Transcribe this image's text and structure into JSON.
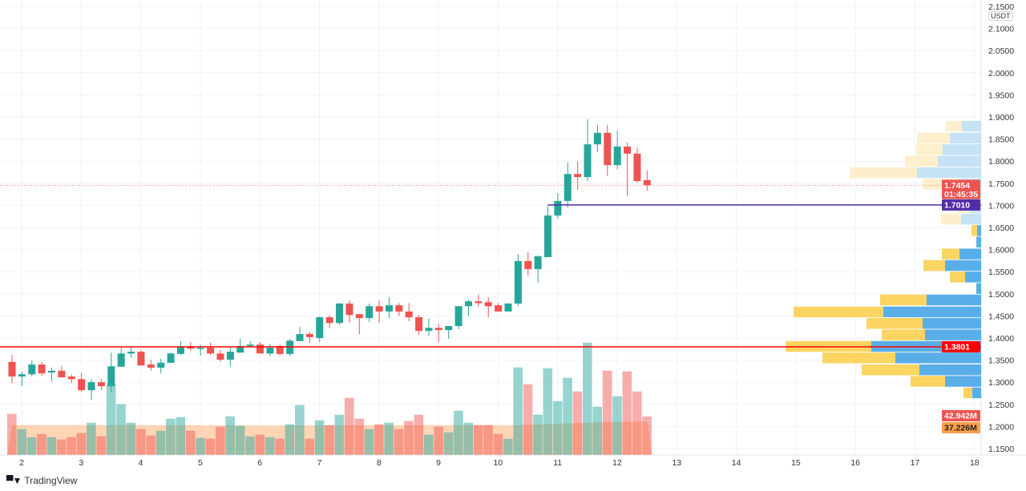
{
  "chart_data": {
    "type": "candlestick",
    "currency": "USDT",
    "y_ticks": [
      "2.1500",
      "2.1000",
      "2.0500",
      "2.0000",
      "1.9500",
      "1.9000",
      "1.8500",
      "1.8000",
      "1.7500",
      "1.7000",
      "1.6500",
      "1.6000",
      "1.5500",
      "1.5000",
      "1.4500",
      "1.4000",
      "1.3500",
      "1.3000",
      "1.2500",
      "1.2000",
      "1.1500"
    ],
    "ylim": [
      1.15,
      2.15
    ],
    "x_ticks": [
      "2",
      "3",
      "4",
      "5",
      "6",
      "7",
      "8",
      "9",
      "10",
      "11",
      "12",
      "13",
      "14",
      "15",
      "16",
      "17",
      "18"
    ],
    "grid": true,
    "colors": {
      "up": "#26a69a",
      "down": "#ef5350",
      "volume_ma": "#ff9800",
      "profile_up": "#5aaee8",
      "profile_down": "#fcd462",
      "support": "#ff0000",
      "level": "#512da8"
    },
    "ohlc": [
      [
        1.346,
        1.362,
        1.297,
        1.313
      ],
      [
        1.313,
        1.324,
        1.291,
        1.318
      ],
      [
        1.318,
        1.349,
        1.313,
        1.34
      ],
      [
        1.34,
        1.346,
        1.315,
        1.32
      ],
      [
        1.322,
        1.333,
        1.302,
        1.326
      ],
      [
        1.326,
        1.336,
        1.311,
        1.311
      ],
      [
        1.313,
        1.318,
        1.298,
        1.307
      ],
      [
        1.307,
        1.322,
        1.278,
        1.282
      ],
      [
        1.282,
        1.306,
        1.26,
        1.3
      ],
      [
        1.3,
        1.307,
        1.282,
        1.291
      ],
      [
        1.291,
        1.367,
        1.278,
        1.336
      ],
      [
        1.335,
        1.378,
        1.335,
        1.365
      ],
      [
        1.365,
        1.382,
        1.356,
        1.369
      ],
      [
        1.369,
        1.373,
        1.338,
        1.338
      ],
      [
        1.34,
        1.351,
        1.326,
        1.333
      ],
      [
        1.333,
        1.353,
        1.32,
        1.344
      ],
      [
        1.344,
        1.367,
        1.344,
        1.365
      ],
      [
        1.364,
        1.393,
        1.362,
        1.38
      ],
      [
        1.38,
        1.391,
        1.371,
        1.376
      ],
      [
        1.376,
        1.385,
        1.36,
        1.378
      ],
      [
        1.378,
        1.389,
        1.362,
        1.365
      ],
      [
        1.365,
        1.373,
        1.346,
        1.351
      ],
      [
        1.351,
        1.38,
        1.336,
        1.369
      ],
      [
        1.367,
        1.398,
        1.367,
        1.382
      ],
      [
        1.382,
        1.393,
        1.38,
        1.385
      ],
      [
        1.385,
        1.391,
        1.365,
        1.365
      ],
      [
        1.365,
        1.387,
        1.36,
        1.378
      ],
      [
        1.382,
        1.385,
        1.36,
        1.364
      ],
      [
        1.364,
        1.398,
        1.36,
        1.394
      ],
      [
        1.393,
        1.425,
        1.393,
        1.409
      ],
      [
        1.409,
        1.413,
        1.389,
        1.402
      ],
      [
        1.4,
        1.449,
        1.391,
        1.447
      ],
      [
        1.447,
        1.452,
        1.422,
        1.434
      ],
      [
        1.434,
        1.479,
        1.429,
        1.478
      ],
      [
        1.478,
        1.485,
        1.434,
        1.452
      ],
      [
        1.454,
        1.454,
        1.409,
        1.445
      ],
      [
        1.445,
        1.478,
        1.436,
        1.472
      ],
      [
        1.472,
        1.485,
        1.434,
        1.46
      ],
      [
        1.46,
        1.492,
        1.445,
        1.474
      ],
      [
        1.474,
        1.479,
        1.45,
        1.46
      ],
      [
        1.46,
        1.479,
        1.438,
        1.447
      ],
      [
        1.447,
        1.452,
        1.407,
        1.416
      ],
      [
        1.416,
        1.445,
        1.405,
        1.423
      ],
      [
        1.423,
        1.432,
        1.391,
        1.418
      ],
      [
        1.418,
        1.427,
        1.398,
        1.427
      ],
      [
        1.427,
        1.472,
        1.42,
        1.472
      ],
      [
        1.472,
        1.487,
        1.449,
        1.483
      ],
      [
        1.483,
        1.498,
        1.471,
        1.479
      ],
      [
        1.481,
        1.492,
        1.447,
        1.472
      ],
      [
        1.474,
        1.479,
        1.46,
        1.46
      ],
      [
        1.46,
        1.479,
        1.46,
        1.478
      ],
      [
        1.478,
        1.59,
        1.472,
        1.574
      ],
      [
        1.574,
        1.594,
        1.541,
        1.556
      ],
      [
        1.556,
        1.587,
        1.525,
        1.585
      ],
      [
        1.583,
        1.699,
        1.583,
        1.677
      ],
      [
        1.677,
        1.728,
        1.67,
        1.71
      ],
      [
        1.71,
        1.797,
        1.695,
        1.771
      ],
      [
        1.771,
        1.799,
        1.735,
        1.764
      ],
      [
        1.764,
        1.895,
        1.755,
        1.838
      ],
      [
        1.838,
        1.882,
        1.82,
        1.864
      ],
      [
        1.864,
        1.882,
        1.766,
        1.791
      ],
      [
        1.791,
        1.869,
        1.782,
        1.833
      ],
      [
        1.833,
        1.842,
        1.722,
        1.817
      ],
      [
        1.817,
        1.831,
        1.751,
        1.755
      ],
      [
        1.757,
        1.779,
        1.733,
        1.7454
      ]
    ],
    "volume_m": [
      45.9,
      28.8,
      19.8,
      23.4,
      19.8,
      17.1,
      19.8,
      24.3,
      36.0,
      20.7,
      79.2,
      56.7,
      36.0,
      28.8,
      21.6,
      27.0,
      40.5,
      42.3,
      27.0,
      18.9,
      18.0,
      31.5,
      43.2,
      32.4,
      20.7,
      22.5,
      19.8,
      18.0,
      34.2,
      55.8,
      18.0,
      38.7,
      33.3,
      45.0,
      63.9,
      40.5,
      28.8,
      34.2,
      36.0,
      28.8,
      37.8,
      45.0,
      22.5,
      31.5,
      25.2,
      49.5,
      36.0,
      33.3,
      33.3,
      23.4,
      18.0,
      98.1,
      79.2,
      45.0,
      97.2,
      60.3,
      86.4,
      71.1,
      126.0,
      54.0,
      94.5,
      65.7,
      93.6,
      71.1,
      42.942
    ],
    "volume_ma_m": [
      33.5,
      33.4,
      33.4,
      33.3,
      33.3,
      33.2,
      33.2,
      33.1,
      33.1,
      33.2,
      33.4,
      33.5,
      33.5,
      33.4,
      33.3,
      33.2,
      33.2,
      33.3,
      33.3,
      33.2,
      33.1,
      33.0,
      33.0,
      33.0,
      32.9,
      32.9,
      32.8,
      32.8,
      32.8,
      33.0,
      33.0,
      33.0,
      33.0,
      33.1,
      33.2,
      33.2,
      33.2,
      33.2,
      33.2,
      33.2,
      33.2,
      33.3,
      33.2,
      33.2,
      33.1,
      33.2,
      33.2,
      33.2,
      33.2,
      33.1,
      33.0,
      33.4,
      33.8,
      34.0,
      34.5,
      34.8,
      35.2,
      35.5,
      36.1,
      36.3,
      36.7,
      36.9,
      37.1,
      37.2,
      37.226
    ],
    "volume_profile": {
      "row_step": 0.0262,
      "rows": [
        {
          "low": 1.262,
          "up": 11,
          "down": 11,
          "in_value_area": true
        },
        {
          "low": 1.288,
          "up": 45,
          "down": 43,
          "in_value_area": true
        },
        {
          "low": 1.314,
          "up": 77,
          "down": 72,
          "in_value_area": true
        },
        {
          "low": 1.341,
          "up": 107,
          "down": 91,
          "in_value_area": true
        },
        {
          "low": 1.367,
          "up": 137,
          "down": 107,
          "in_value_area": true
        },
        {
          "low": 1.393,
          "up": 70,
          "down": 54,
          "in_value_area": true
        },
        {
          "low": 1.419,
          "up": 73,
          "down": 70,
          "in_value_area": true
        },
        {
          "low": 1.445,
          "up": 122,
          "down": 112,
          "in_value_area": true
        },
        {
          "low": 1.472,
          "up": 68,
          "down": 58,
          "in_value_area": true
        },
        {
          "low": 1.498,
          "up": 6,
          "down": 0,
          "in_value_area": true
        },
        {
          "low": 1.524,
          "up": 20,
          "down": 19,
          "in_value_area": true
        },
        {
          "low": 1.55,
          "up": 45,
          "down": 27,
          "in_value_area": true
        },
        {
          "low": 1.576,
          "up": 27,
          "down": 22,
          "in_value_area": true
        },
        {
          "low": 1.603,
          "up": 6,
          "down": 0,
          "in_value_area": true
        },
        {
          "low": 1.629,
          "up": 5,
          "down": 7,
          "in_value_area": true
        },
        {
          "low": 1.655,
          "up": 25,
          "down": 25,
          "in_value_area": false
        },
        {
          "low": 1.681,
          "up": 15,
          "down": 15,
          "in_value_area": false
        },
        {
          "low": 1.707,
          "up": 19,
          "down": 20,
          "in_value_area": false
        },
        {
          "low": 1.734,
          "up": 29,
          "down": 43,
          "in_value_area": false
        },
        {
          "low": 1.76,
          "up": 80,
          "down": 84,
          "in_value_area": false
        },
        {
          "low": 1.786,
          "up": 54,
          "down": 41,
          "in_value_area": false
        },
        {
          "low": 1.812,
          "up": 48,
          "down": 33,
          "in_value_area": false
        },
        {
          "low": 1.838,
          "up": 39,
          "down": 41,
          "in_value_area": false
        },
        {
          "low": 1.865,
          "up": 24,
          "down": 20,
          "in_value_area": false
        }
      ]
    },
    "lines": {
      "support": {
        "price": 1.3801,
        "label": "1.3801"
      },
      "level": {
        "price": 1.701,
        "label": "1.7010"
      },
      "last": {
        "price": 1.7454,
        "label": "1.7454",
        "countdown": "01:45:35"
      }
    },
    "volume_labels": {
      "volume": "42.942M",
      "ma": "37.226M"
    }
  },
  "branding": {
    "logo_mark": "TV",
    "logo_text": "TradingView"
  }
}
